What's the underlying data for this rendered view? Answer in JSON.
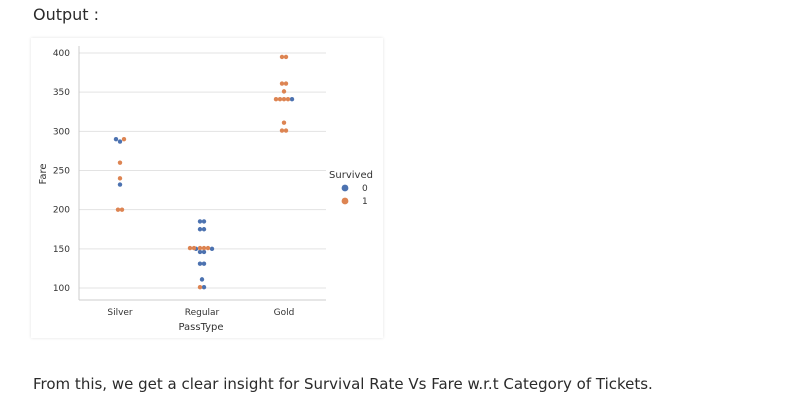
{
  "header": {
    "output_label": "Output :"
  },
  "caption": "From this, we get a clear insight for Survival Rate Vs Fare w.r.t Category of Tickets.",
  "chart_data": {
    "type": "scatter",
    "subtype": "swarm",
    "title": "",
    "xlabel": "PassType",
    "ylabel": "Fare",
    "categories": [
      "Silver",
      "Regular",
      "Gold"
    ],
    "ylim": [
      85,
      410
    ],
    "yticks": [
      100,
      150,
      200,
      250,
      300,
      350,
      400
    ],
    "grid": true,
    "legend": {
      "title": "Survived",
      "placement": "right",
      "entries": [
        {
          "label": "0",
          "color": "#4c72b0"
        },
        {
          "label": "1",
          "color": "#dd8452"
        }
      ]
    },
    "series": [
      {
        "hue": "0",
        "color": "#4c72b0",
        "points": [
          {
            "x": "Silver",
            "y": 290,
            "offset": -1
          },
          {
            "x": "Silver",
            "y": 287,
            "offset": 0
          },
          {
            "x": "Silver",
            "y": 232,
            "offset": 0
          },
          {
            "x": "Regular",
            "y": 185,
            "offset": -0.5
          },
          {
            "x": "Regular",
            "y": 185,
            "offset": 0.5
          },
          {
            "x": "Regular",
            "y": 175,
            "offset": -0.5
          },
          {
            "x": "Regular",
            "y": 175,
            "offset": 0.5
          },
          {
            "x": "Regular",
            "y": 150,
            "offset": -1.5
          },
          {
            "x": "Regular",
            "y": 150,
            "offset": 2.5
          },
          {
            "x": "Regular",
            "y": 146,
            "offset": -0.5
          },
          {
            "x": "Regular",
            "y": 146,
            "offset": 0.5
          },
          {
            "x": "Regular",
            "y": 131,
            "offset": -0.5
          },
          {
            "x": "Regular",
            "y": 131,
            "offset": 0.5
          },
          {
            "x": "Regular",
            "y": 111,
            "offset": 0
          },
          {
            "x": "Regular",
            "y": 101,
            "offset": 0.5
          },
          {
            "x": "Gold",
            "y": 341,
            "offset": 2
          }
        ]
      },
      {
        "hue": "1",
        "color": "#dd8452",
        "points": [
          {
            "x": "Silver",
            "y": 290,
            "offset": 1
          },
          {
            "x": "Silver",
            "y": 260,
            "offset": 0
          },
          {
            "x": "Silver",
            "y": 240,
            "offset": 0
          },
          {
            "x": "Silver",
            "y": 200,
            "offset": -0.5
          },
          {
            "x": "Silver",
            "y": 200,
            "offset": 0.5
          },
          {
            "x": "Regular",
            "y": 151,
            "offset": -3
          },
          {
            "x": "Regular",
            "y": 151,
            "offset": -2
          },
          {
            "x": "Regular",
            "y": 151,
            "offset": -0.5
          },
          {
            "x": "Regular",
            "y": 151,
            "offset": 0.5
          },
          {
            "x": "Regular",
            "y": 151,
            "offset": 1.5
          },
          {
            "x": "Regular",
            "y": 101,
            "offset": -0.5
          },
          {
            "x": "Gold",
            "y": 395,
            "offset": -0.5
          },
          {
            "x": "Gold",
            "y": 395,
            "offset": 0.5
          },
          {
            "x": "Gold",
            "y": 361,
            "offset": -0.5
          },
          {
            "x": "Gold",
            "y": 361,
            "offset": 0.5
          },
          {
            "x": "Gold",
            "y": 351,
            "offset": 0
          },
          {
            "x": "Gold",
            "y": 341,
            "offset": -2
          },
          {
            "x": "Gold",
            "y": 341,
            "offset": -1
          },
          {
            "x": "Gold",
            "y": 341,
            "offset": 0
          },
          {
            "x": "Gold",
            "y": 341,
            "offset": 1
          },
          {
            "x": "Gold",
            "y": 311,
            "offset": 0
          },
          {
            "x": "Gold",
            "y": 301,
            "offset": -0.5
          },
          {
            "x": "Gold",
            "y": 301,
            "offset": 0.5
          }
        ]
      }
    ]
  }
}
